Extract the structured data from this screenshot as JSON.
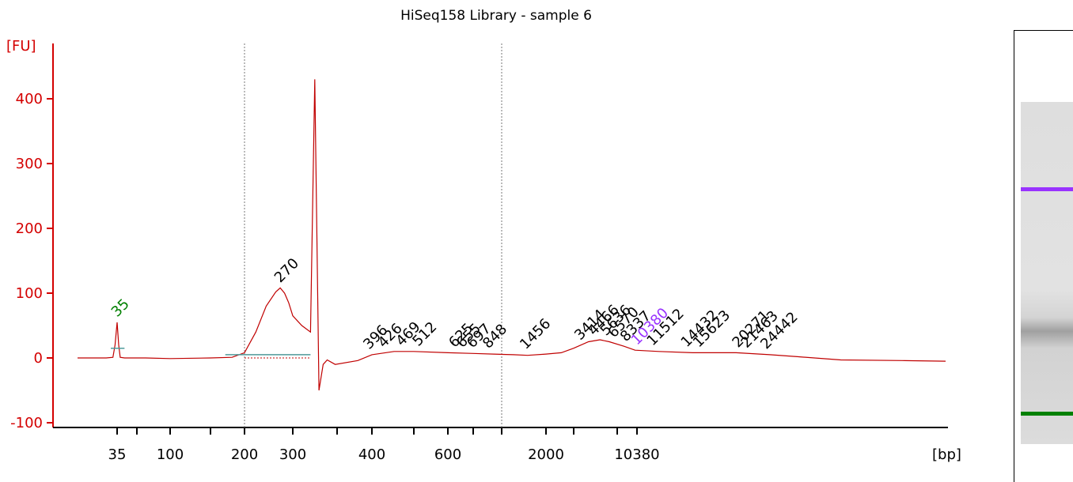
{
  "colors": {
    "axis": "#d40000",
    "trace": "#c00000",
    "lower_marker": "#008000",
    "upper_marker": "#9933ff",
    "baseline": "#4f9a9a"
  },
  "chart_data": {
    "type": "line",
    "title": "HiSeq158 Library - sample 6",
    "ylabel": "[FU]",
    "xlabel": "[bp]",
    "ylim": [
      -110,
      500
    ],
    "yticks": [
      -100,
      0,
      100,
      200,
      300,
      400
    ],
    "x_is_categorical_ladder": true,
    "xtick_labels": [
      "35",
      "100",
      "200",
      "300",
      "400",
      "600",
      "2000",
      "10380"
    ],
    "series": [
      {
        "points": [
          [
            20,
            0
          ],
          [
            30,
            0
          ],
          [
            33,
            1
          ],
          [
            34,
            20
          ],
          [
            35,
            55
          ],
          [
            36,
            20
          ],
          [
            37,
            1
          ],
          [
            40,
            0
          ],
          [
            60,
            0
          ],
          [
            100,
            -1
          ],
          [
            150,
            0
          ],
          [
            180,
            1
          ],
          [
            200,
            8
          ],
          [
            220,
            40
          ],
          [
            240,
            80
          ],
          [
            260,
            102
          ],
          [
            270,
            108
          ],
          [
            280,
            100
          ],
          [
            290,
            85
          ],
          [
            300,
            65
          ],
          [
            310,
            50
          ],
          [
            320,
            40
          ],
          [
            325,
            430
          ],
          [
            330,
            -50
          ],
          [
            335,
            -10
          ],
          [
            340,
            -3
          ],
          [
            350,
            -10
          ],
          [
            380,
            -4
          ],
          [
            400,
            5
          ],
          [
            450,
            10
          ],
          [
            500,
            10
          ],
          [
            600,
            8
          ],
          [
            700,
            7
          ],
          [
            900,
            6
          ],
          [
            1200,
            5
          ],
          [
            1500,
            4
          ],
          [
            2000,
            6
          ],
          [
            2500,
            8
          ],
          [
            3000,
            15
          ],
          [
            4000,
            25
          ],
          [
            5000,
            28
          ],
          [
            6000,
            25
          ],
          [
            8000,
            18
          ],
          [
            10000,
            12
          ],
          [
            12000,
            10
          ],
          [
            15000,
            8
          ],
          [
            20000,
            8
          ],
          [
            25000,
            5
          ],
          [
            30000,
            2
          ],
          [
            40000,
            -3
          ],
          [
            60000,
            -4
          ],
          [
            80000,
            -5
          ]
        ]
      }
    ],
    "peak_labels": [
      {
        "bp": 35,
        "label": "35",
        "color": "#008000"
      },
      {
        "bp": 270,
        "label": "270",
        "color": "#000000"
      },
      {
        "bp": 396,
        "label": "396",
        "color": "#000000"
      },
      {
        "bp": 426,
        "label": "426",
        "color": "#000000"
      },
      {
        "bp": 469,
        "label": "469",
        "color": "#000000"
      },
      {
        "bp": 512,
        "label": "512",
        "color": "#000000"
      },
      {
        "bp": 625,
        "label": "625",
        "color": "#000000"
      },
      {
        "bp": 655,
        "label": "655",
        "color": "#000000"
      },
      {
        "bp": 697,
        "label": "697",
        "color": "#000000"
      },
      {
        "bp": 848,
        "label": "848",
        "color": "#000000"
      },
      {
        "bp": 1456,
        "label": "1456",
        "color": "#000000"
      },
      {
        "bp": 3414,
        "label": "3414",
        "color": "#000000"
      },
      {
        "bp": 4466,
        "label": "4466",
        "color": "#000000"
      },
      {
        "bp": 5636,
        "label": "5636",
        "color": "#000000"
      },
      {
        "bp": 6570,
        "label": "6570",
        "color": "#000000"
      },
      {
        "bp": 8337,
        "label": "8337",
        "color": "#000000"
      },
      {
        "bp": 10380,
        "label": "10380",
        "color": "#9933ff"
      },
      {
        "bp": 11512,
        "label": "11512",
        "color": "#000000"
      },
      {
        "bp": 14432,
        "label": "14432",
        "color": "#000000"
      },
      {
        "bp": 15623,
        "label": "15623",
        "color": "#000000"
      },
      {
        "bp": 20271,
        "label": "20271",
        "color": "#000000"
      },
      {
        "bp": 21463,
        "label": "21463",
        "color": "#000000"
      },
      {
        "bp": 24442,
        "label": "24442",
        "color": "#000000"
      }
    ],
    "region_bounds_bp": [
      200,
      1000
    ],
    "grid": false
  }
}
